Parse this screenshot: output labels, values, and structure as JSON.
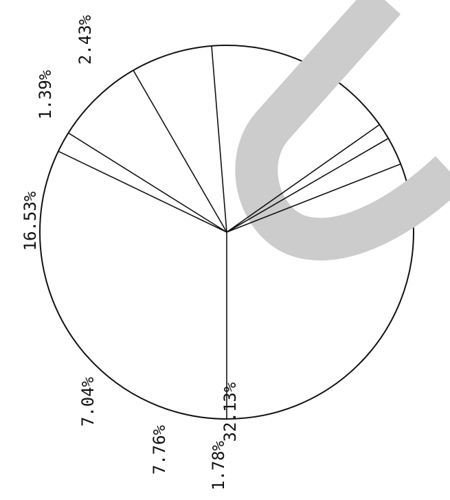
{
  "chart_data": {
    "type": "pie",
    "title": "",
    "slices": [
      {
        "label": "32.13%",
        "value": 32.13
      },
      {
        "label": "1.78%",
        "value": 1.78
      },
      {
        "label": "7.76%",
        "value": 7.76
      },
      {
        "label": "7.04%",
        "value": 7.04
      },
      {
        "label": "16.53%",
        "value": 16.53
      },
      {
        "label": "1.39%",
        "value": 1.39
      },
      {
        "label": "2.43%",
        "value": 2.43
      }
    ],
    "unlabeled_remainder_percent": 30.94,
    "label_orientation": "rotated -90 degrees",
    "overlay_color": "#cccccc",
    "line_color": "#111111"
  }
}
